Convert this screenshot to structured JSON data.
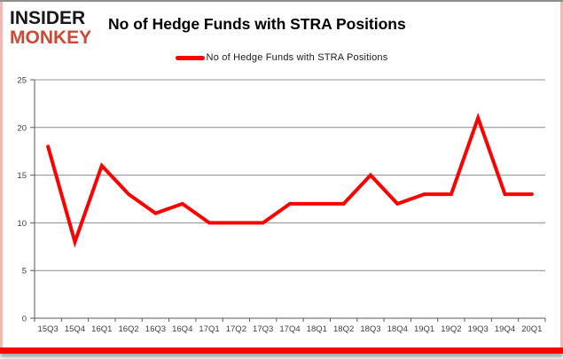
{
  "brand": {
    "line1": "INSIDER",
    "line2": "MONKEY"
  },
  "title": "No of Hedge Funds with STRA Positions",
  "legend": {
    "label": "No of Hedge Funds with STRA Positions",
    "color": "#ff0000"
  },
  "chart_data": {
    "type": "line",
    "title": "No of Hedge Funds with STRA Positions",
    "categories": [
      "15Q3",
      "15Q4",
      "16Q1",
      "16Q2",
      "16Q3",
      "16Q4",
      "17Q1",
      "17Q2",
      "17Q3",
      "17Q4",
      "18Q1",
      "18Q2",
      "18Q3",
      "18Q4",
      "19Q1",
      "19Q2",
      "19Q3",
      "19Q4",
      "20Q1"
    ],
    "series": [
      {
        "name": "No of Hedge Funds with STRA Positions",
        "values": [
          18,
          8,
          16,
          13,
          11,
          12,
          10,
          10,
          10,
          12,
          12,
          12,
          15,
          12,
          13,
          13,
          21,
          13,
          13
        ]
      }
    ],
    "xlabel": "",
    "ylabel": "",
    "ylim": [
      0,
      25
    ],
    "yticks": [
      0,
      5,
      10,
      15,
      20,
      25
    ],
    "grid": true,
    "legend_position": "top",
    "line_color": "#ff0000"
  },
  "colors": {
    "line": "#ff0000",
    "grid": "#8c8c8c",
    "axis": "#595959",
    "brand_red": "#cb4a36",
    "frame_pink": "#f2b9b5",
    "frame_top": "#8e8e8e",
    "bottom_bar": "#ff0000"
  }
}
